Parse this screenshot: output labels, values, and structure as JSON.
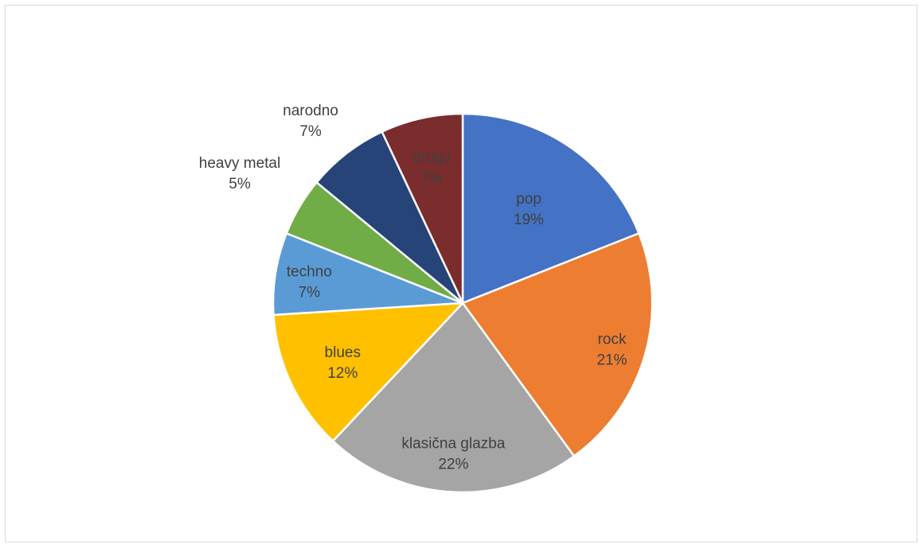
{
  "chart_data": {
    "type": "pie",
    "title": "",
    "slices": [
      {
        "label": "pop",
        "value": 19,
        "display": "19%",
        "color": "#4472C4"
      },
      {
        "label": "rock",
        "value": 21,
        "display": "21%",
        "color": "#ED7D31"
      },
      {
        "label": "klasična glazba",
        "value": 22,
        "display": "22%",
        "color": "#A5A5A5"
      },
      {
        "label": "blues",
        "value": 12,
        "display": "12%",
        "color": "#FFC000"
      },
      {
        "label": "techno",
        "value": 7,
        "display": "7%",
        "color": "#5B9BD5"
      },
      {
        "label": "heavy metal",
        "value": 5,
        "display": "5%",
        "color": "#70AD47"
      },
      {
        "label": "narodno",
        "value": 7,
        "display": "7%",
        "color": "#264478"
      },
      {
        "label": "drugo",
        "value": 7,
        "display": "7%",
        "color": "#7B2C2C"
      }
    ],
    "start_angle": "12 o'clock",
    "direction": "clockwise",
    "legend": "none"
  }
}
